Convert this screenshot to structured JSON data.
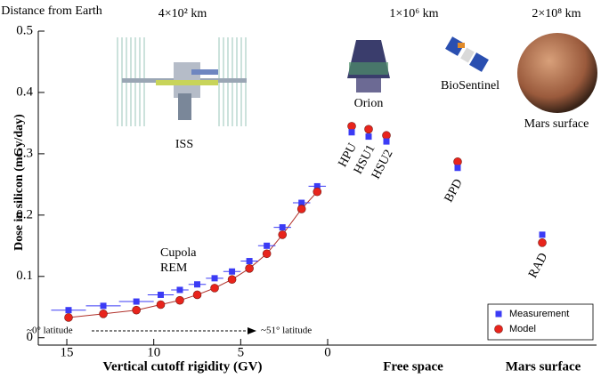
{
  "chart_data": {
    "type": "scatter",
    "ylabel": "Dose in silicon (mGy/day)",
    "xlabel": "Vertical cutoff rigidity (GV)",
    "group_labels": [
      "Free space",
      "Mars surface"
    ],
    "xlim": [
      16.64,
      0
    ],
    "xticks": [
      15,
      10,
      5,
      0
    ],
    "ylim": [
      -0.012,
      0.5
    ],
    "yticks": [
      0,
      0.1,
      0.2,
      0.3,
      0.4,
      0.5
    ],
    "distance_title": "Distance from Earth",
    "distances": [
      "4×10² km",
      "1×10⁶ km",
      "2×10⁸ km"
    ],
    "craft": [
      "ISS",
      "Orion",
      "BioSentinel",
      "Mars surface"
    ],
    "instrument": "Cupola REM",
    "latitudes": [
      "~0° latitude",
      "~51° latitude"
    ],
    "series": [
      {
        "name": "Measurement",
        "color": "#3b3bf5",
        "x": [
          14.9,
          12.9,
          11.0,
          9.6,
          8.5,
          7.5,
          6.5,
          5.5,
          4.5,
          3.5,
          2.6,
          1.5,
          0.6
        ],
        "x_errors": [
          1,
          1,
          1,
          0.75,
          0.5,
          0.5,
          0.5,
          0.5,
          0.5,
          0.5,
          0.5,
          0.5,
          0.5
        ],
        "values": [
          0.045,
          0.052,
          0.059,
          0.07,
          0.078,
          0.087,
          0.097,
          0.108,
          0.125,
          0.15,
          0.18,
          0.22,
          0.247
        ]
      },
      {
        "name": "Model",
        "color": "#e8241c",
        "x": [
          14.9,
          12.9,
          11.0,
          9.6,
          8.5,
          7.5,
          6.5,
          5.5,
          4.5,
          3.5,
          2.6,
          1.5,
          0.6
        ],
        "values": [
          0.033,
          0.039,
          0.045,
          0.054,
          0.061,
          0.07,
          0.081,
          0.095,
          0.113,
          0.137,
          0.168,
          0.21,
          0.238
        ]
      }
    ],
    "other_points": [
      {
        "label": "HPU",
        "measurement": 0.335,
        "model": 0.345
      },
      {
        "label": "HSU1",
        "measurement": 0.328,
        "model": 0.34
      },
      {
        "label": "HSU2",
        "measurement": 0.32,
        "model": 0.33
      },
      {
        "label": "BPD",
        "measurement": 0.277,
        "model": 0.287
      },
      {
        "label": "RAD",
        "measurement": 0.168,
        "model": 0.155
      }
    ]
  }
}
